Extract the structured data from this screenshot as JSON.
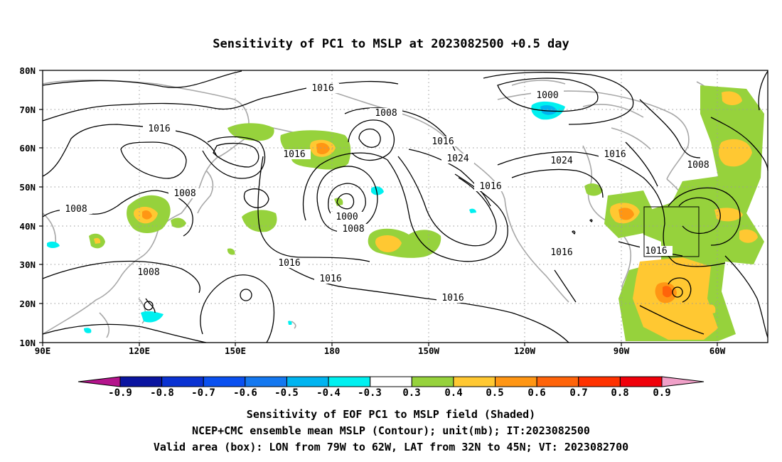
{
  "title": "Sensitivity of PC1 to MSLP at 2023082500 +0.5 day",
  "axes": {
    "lat_ticks": [
      "80N",
      "70N",
      "60N",
      "50N",
      "40N",
      "30N",
      "20N",
      "10N"
    ],
    "lon_ticks": [
      "90E",
      "120E",
      "150E",
      "180",
      "150W",
      "120W",
      "90W",
      "60W"
    ]
  },
  "contour_labels": [
    {
      "text": "1016"
    },
    {
      "text": "1000"
    },
    {
      "text": "1016"
    },
    {
      "text": "1008"
    },
    {
      "text": "1016"
    },
    {
      "text": "1016"
    },
    {
      "text": "1024"
    },
    {
      "text": "1016"
    },
    {
      "text": "1024"
    },
    {
      "text": "1008"
    },
    {
      "text": "1008"
    },
    {
      "text": "1016"
    },
    {
      "text": "1008"
    },
    {
      "text": "1000"
    },
    {
      "text": "1008"
    },
    {
      "text": "1016"
    },
    {
      "text": "1016"
    },
    {
      "text": "1016"
    },
    {
      "text": "1016"
    },
    {
      "text": "1008"
    },
    {
      "text": "1016"
    }
  ],
  "valid_box": {
    "lon_min": -79,
    "lon_max": -62,
    "lat_min": 32,
    "lat_max": 45
  },
  "colorbar": {
    "labels": [
      "-0.9",
      "-0.8",
      "-0.7",
      "-0.6",
      "-0.5",
      "-0.4",
      "-0.3",
      "0.3",
      "0.4",
      "0.5",
      "0.6",
      "0.7",
      "0.8",
      "0.9"
    ],
    "colors": [
      "#0a14a0",
      "#0a32d2",
      "#0a50f0",
      "#1478f0",
      "#00b4f0",
      "#00f0f0",
      "#ffffff",
      "#96d23c",
      "#ffc832",
      "#ff9614",
      "#ff640a",
      "#ff3200",
      "#f0000a"
    ],
    "low_arrow_color": "#b4148c",
    "high_arrow_color": "#f0a0c8"
  },
  "captions": [
    "Sensitivity of EOF PC1 to MSLP field (Shaded)",
    "NCEP+CMC ensemble mean MSLP (Contour); unit(mb); IT:2023082500",
    "Valid area (box): LON from 79W to 62W, LAT from 32N to 45N; VT: 2023082700"
  ]
}
